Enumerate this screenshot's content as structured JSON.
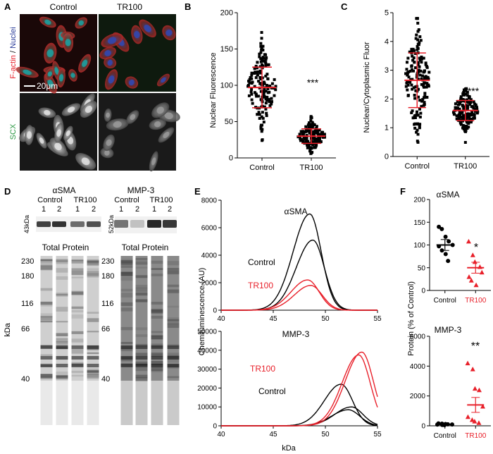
{
  "panels": {
    "A": {
      "letter": "A",
      "col_control": "Control",
      "col_tr100": "TR100",
      "stain_factin": "F-actin",
      "stain_sep": " / ",
      "stain_nuclei": "Nuclei",
      "stain_scx": "SCX",
      "scalebar": "20μm"
    },
    "B": {
      "letter": "B",
      "ylabel": "Nuclear Fluorescence",
      "sig": "***"
    },
    "C": {
      "letter": "C",
      "ylabel": "Nuclear/Cytoplasmic Fluor",
      "sig": "***"
    },
    "D": {
      "letter": "D",
      "asma": "αSMA",
      "mmp3": "MMP-3",
      "control": "Control",
      "tr100": "TR100",
      "lane1": "1",
      "lane2": "2",
      "mw_asma": "43kDa",
      "mw_mmp3": "52kDa",
      "total_protein": "Total Protein",
      "kda": "kDa",
      "ladder": [
        "230",
        "180",
        "116",
        "66",
        "40"
      ]
    },
    "E": {
      "letter": "E",
      "ylabel": "Chemiluminescence (AU)",
      "xlabel": "kDa",
      "top_title": "αSMA",
      "bottom_title": "MMP-3",
      "control": "Control",
      "tr100": "TR100"
    },
    "F": {
      "letter": "F",
      "ylabel": "Protein (% of Control)",
      "top_title": "αSMA",
      "bottom_title": "MMP-3",
      "sig_top": "*",
      "sig_bottom": "**"
    }
  },
  "colors": {
    "control": "#000000",
    "tr100": "#e8202a",
    "factin": "#e8202a",
    "nuclei": "#2a3c9a",
    "scx": "#2e9a45"
  },
  "chart_data": [
    {
      "id": "B",
      "type": "scatter",
      "categories": [
        "Control",
        "TR100"
      ],
      "ylim": [
        0,
        200
      ],
      "yticks": [
        0,
        50,
        100,
        150,
        200
      ],
      "series": [
        {
          "category": "Control",
          "mean": 97,
          "sd": 28
        },
        {
          "category": "TR100",
          "mean": 30,
          "sd": 10
        }
      ],
      "ylabel": "Nuclear Fluorescence"
    },
    {
      "id": "C",
      "type": "scatter",
      "categories": [
        "Control",
        "TR100"
      ],
      "ylim": [
        0,
        5
      ],
      "yticks": [
        0,
        1,
        2,
        3,
        4,
        5
      ],
      "series": [
        {
          "category": "Control",
          "mean": 2.65,
          "sd": 0.95
        },
        {
          "category": "TR100",
          "mean": 1.6,
          "sd": 0.35
        }
      ],
      "ylabel": "Nuclear/Cytoplasmic Fluor"
    },
    {
      "id": "E-top",
      "type": "line",
      "xlim": [
        40,
        55
      ],
      "ylim": [
        0,
        8000
      ],
      "xticks": [
        40,
        45,
        50,
        55
      ],
      "yticks": [
        0,
        2000,
        4000,
        6000,
        8000
      ],
      "series": [
        {
          "group": "Control",
          "peak": 48.5,
          "height": 7000
        },
        {
          "group": "Control",
          "peak": 48.8,
          "height": 5100
        },
        {
          "group": "TR100",
          "peak": 48.3,
          "height": 2200
        },
        {
          "group": "TR100",
          "peak": 48.6,
          "height": 1800
        }
      ]
    },
    {
      "id": "E-bottom",
      "type": "line",
      "xlim": [
        40,
        55
      ],
      "ylim": [
        0,
        50000
      ],
      "xticks": [
        40,
        45,
        50,
        55
      ],
      "yticks": [
        0,
        10000,
        20000,
        30000,
        40000,
        50000
      ],
      "series": [
        {
          "group": "Control",
          "peak": 51.5,
          "height": 22000
        },
        {
          "group": "Control",
          "peak": 52.5,
          "height": 10000
        },
        {
          "group": "Control",
          "peak": 52.2,
          "height": 8500
        },
        {
          "group": "TR100",
          "peak": 53.5,
          "height": 39000
        },
        {
          "group": "TR100",
          "peak": 53.2,
          "height": 37500
        }
      ]
    },
    {
      "id": "F-top",
      "type": "scatter",
      "categories": [
        "Control",
        "TR100"
      ],
      "ylim": [
        0,
        200
      ],
      "yticks": [
        0,
        50,
        100,
        150,
        200
      ],
      "series": [
        {
          "category": "Control",
          "mean": 100,
          "sem": 12,
          "values": [
            140,
            135,
            118,
            108,
            100,
            97,
            88,
            80,
            65
          ]
        },
        {
          "category": "TR100",
          "mean": 50,
          "sem": 12,
          "values": [
            108,
            78,
            63,
            52,
            40,
            30,
            22,
            12
          ]
        }
      ]
    },
    {
      "id": "F-bottom",
      "type": "scatter",
      "categories": [
        "Control",
        "TR100"
      ],
      "ylim": [
        0,
        6000
      ],
      "yticks": [
        0,
        2000,
        4000,
        6000
      ],
      "series": [
        {
          "category": "Control",
          "mean": 100,
          "sem": 30,
          "values": [
            160,
            140,
            120,
            100,
            90,
            80,
            60,
            50
          ]
        },
        {
          "category": "TR100",
          "mean": 1400,
          "sem": 500,
          "values": [
            4200,
            3800,
            2500,
            2400,
            1300,
            600,
            400,
            300,
            200
          ]
        }
      ]
    }
  ]
}
